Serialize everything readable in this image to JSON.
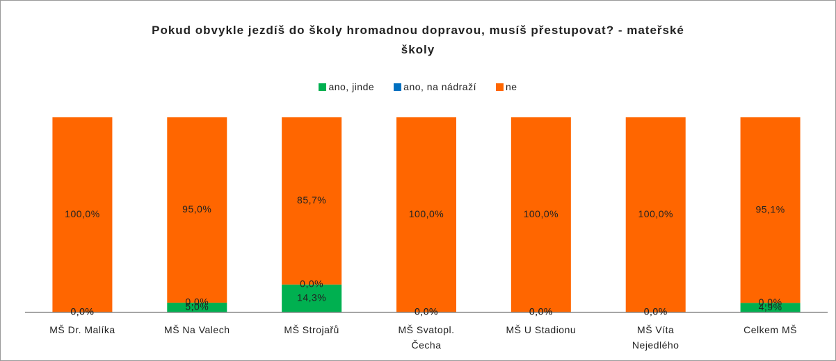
{
  "chart_data": {
    "type": "stacked_bar",
    "title": "Pokud obvykle jezdíš do školy hromadnou dopravou, musíš přestupovat? - mateřské školy",
    "categories": [
      "MŠ Dr. Malíka",
      "MŠ Na Valech",
      "MŠ Strojařů",
      "MŠ Svatopl. Čecha",
      "MŠ U Stadionu",
      "MŠ Víta Nejedlého",
      "Celkem MŠ"
    ],
    "series": [
      {
        "name": "ano, jinde",
        "color": "#00b050",
        "values": [
          0,
          5,
          14.3,
          0,
          0,
          0,
          4.9
        ],
        "value_labels": [
          "0,0%",
          "5,0%",
          "14,3%",
          "0,0%",
          "0,0%",
          "0,0%",
          "4,9%"
        ]
      },
      {
        "name": "ano, na nádraží",
        "color": "#0070c0",
        "values": [
          0,
          0,
          0,
          0,
          0,
          0,
          0
        ],
        "value_labels": [
          "0,0%",
          "0,0%",
          "0,0%",
          "0,0%",
          "0,0%",
          "0,0%",
          "0,0%"
        ]
      },
      {
        "name": "ne",
        "color": "#ff6600",
        "values": [
          100,
          95,
          85.7,
          100,
          100,
          100,
          95.1
        ],
        "value_labels": [
          "100,0%",
          "95,0%",
          "85,7%",
          "100,0%",
          "100,0%",
          "100,0%",
          "95,1%"
        ]
      }
    ],
    "ylim": [
      0,
      100
    ]
  }
}
